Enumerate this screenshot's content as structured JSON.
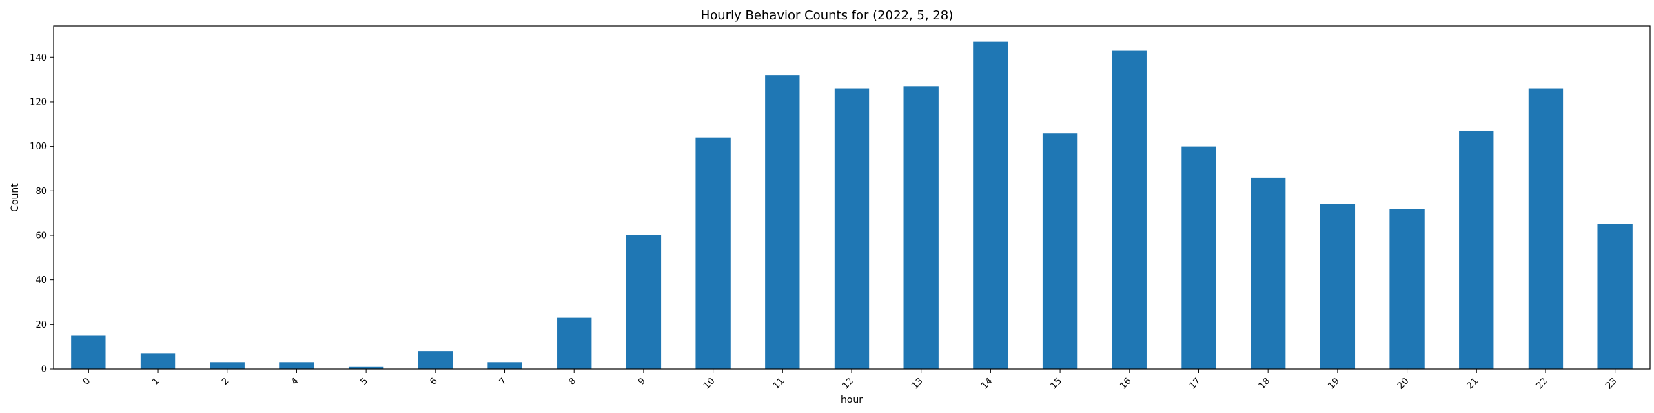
{
  "chart_data": {
    "type": "bar",
    "title": "Hourly Behavior Counts for (2022, 5, 28)",
    "xlabel": "hour",
    "ylabel": "Count",
    "categories": [
      "0",
      "1",
      "2",
      "4",
      "5",
      "6",
      "7",
      "8",
      "9",
      "10",
      "11",
      "12",
      "13",
      "14",
      "15",
      "16",
      "17",
      "18",
      "19",
      "20",
      "21",
      "22",
      "23"
    ],
    "values": [
      15,
      7,
      3,
      3,
      1,
      8,
      3,
      23,
      60,
      104,
      132,
      126,
      127,
      147,
      106,
      143,
      100,
      86,
      74,
      72,
      107,
      126,
      65
    ],
    "ylim": [
      0,
      154
    ],
    "yticks": [
      0,
      20,
      40,
      60,
      80,
      100,
      120,
      140
    ],
    "bar_color": "#1f77b4",
    "grid": false,
    "legend": false
  }
}
